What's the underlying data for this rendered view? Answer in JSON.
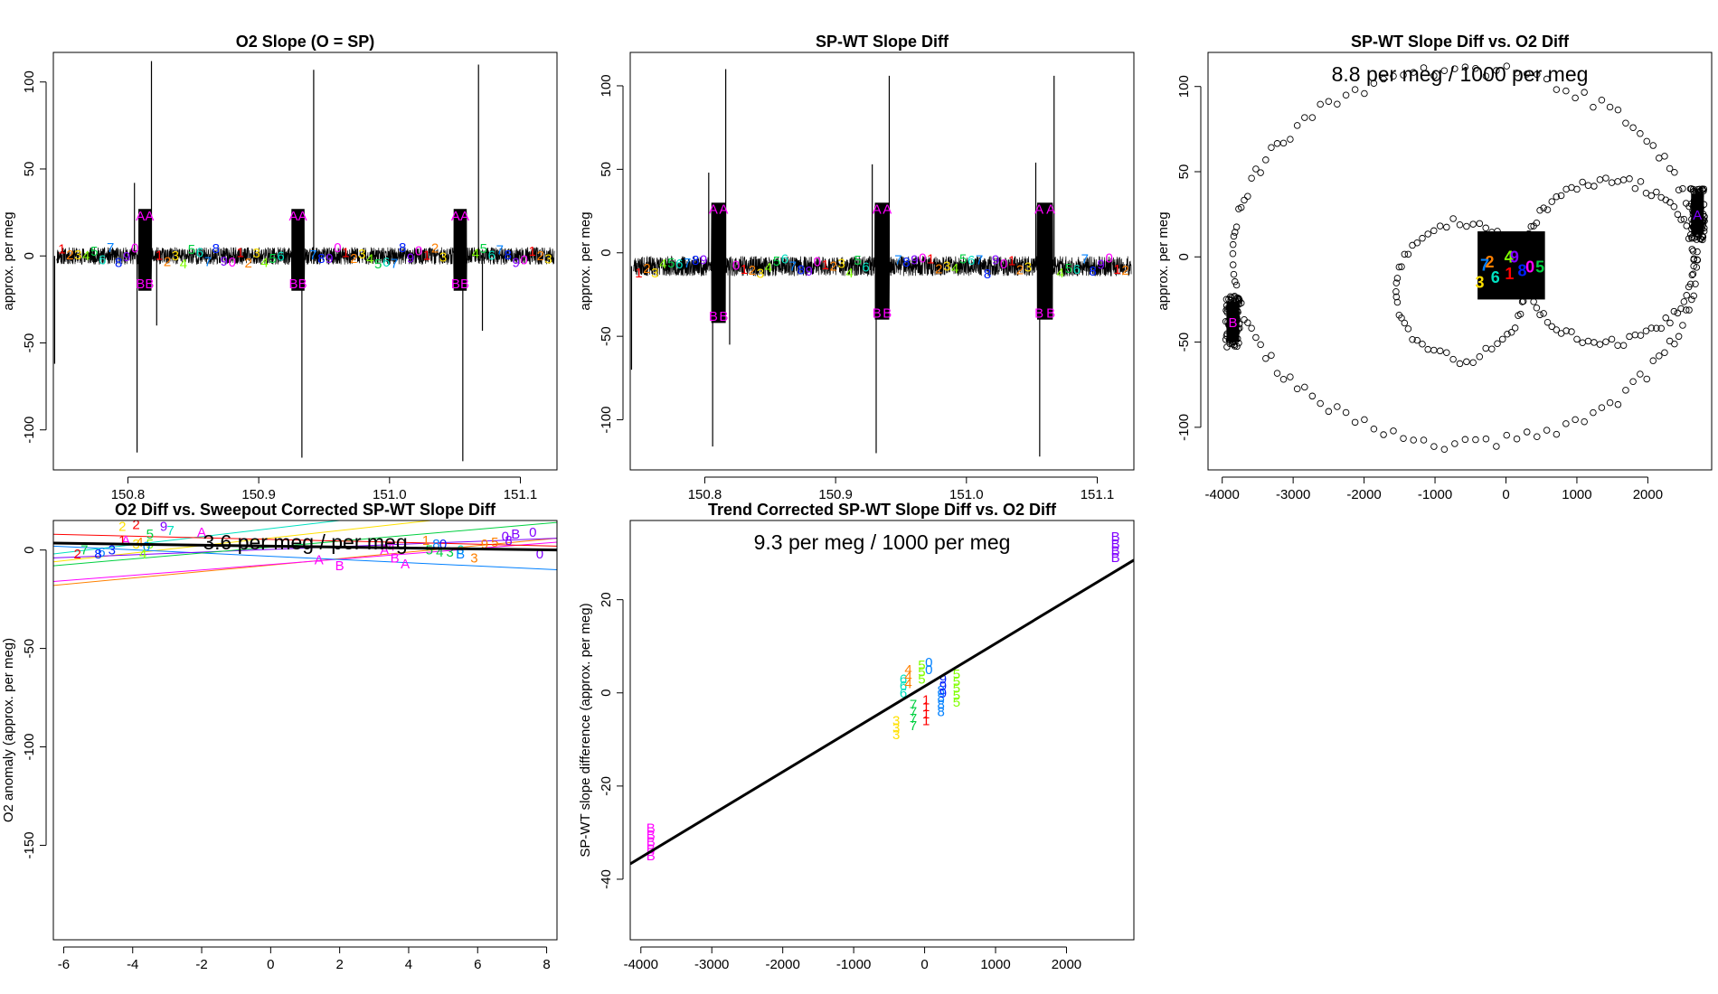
{
  "figure": {
    "layout": "2x3 grid of R base-graphics panels; bottom-right cell empty",
    "colors": {
      "rainbow": [
        "#ff0000",
        "#ff8000",
        "#ffe000",
        "#80ff00",
        "#00d040",
        "#00e0c0",
        "#0080ff",
        "#0020ff",
        "#8000ff",
        "#ff00ff"
      ],
      "line": "#000000"
    }
  },
  "chart_data": [
    {
      "id": "p1",
      "type": "line",
      "title": "O2 Slope (O = SP)",
      "xlabel": "",
      "ylabel": "approx. per meg",
      "xlim": [
        150.743,
        151.128
      ],
      "ylim": [
        -123,
        117
      ],
      "xticks": [
        150.8,
        150.9,
        151.0,
        151.1
      ],
      "xtick_labels": [
        "150.8",
        "150.9",
        "151.0",
        "151.1"
      ],
      "yticks": [
        -100,
        -50,
        0,
        50,
        100
      ],
      "ytick_labels": [
        "-100",
        "-50",
        "0",
        "50",
        "100"
      ],
      "baseline": 0,
      "noise": 5,
      "cycle_labels": [
        "1",
        "2",
        "3",
        "4",
        "5",
        "6",
        "7",
        "8",
        "9",
        "0"
      ],
      "blocks": [
        {
          "x0": 150.808,
          "x1": 150.818,
          "level": 0,
          "label_hi": "A",
          "label_lo": "B",
          "hi": 23,
          "lo": -16
        },
        {
          "x0": 150.925,
          "x1": 150.935,
          "level": 0,
          "label_hi": "A",
          "label_lo": "B",
          "hi": 23,
          "lo": -16
        },
        {
          "x0": 151.049,
          "x1": 151.059,
          "level": 0,
          "label_hi": "A",
          "label_lo": "B",
          "hi": 23,
          "lo": -16
        }
      ],
      "spikes": [
        {
          "x": 150.744,
          "y": -62
        },
        {
          "x": 150.805,
          "y": 42
        },
        {
          "x": 150.807,
          "y": -113
        },
        {
          "x": 150.818,
          "y": 112
        },
        {
          "x": 150.822,
          "y": -40
        },
        {
          "x": 150.933,
          "y": -116
        },
        {
          "x": 150.942,
          "y": 107
        },
        {
          "x": 151.056,
          "y": -118
        },
        {
          "x": 151.068,
          "y": 110
        },
        {
          "x": 151.071,
          "y": -43
        }
      ]
    },
    {
      "id": "p2",
      "type": "line",
      "title": "SP-WT Slope Diff",
      "xlabel": "",
      "ylabel": "approx. per meg",
      "xlim": [
        150.743,
        151.128
      ],
      "ylim": [
        -130,
        120
      ],
      "xticks": [
        150.8,
        150.9,
        151.0,
        151.1
      ],
      "xtick_labels": [
        "150.8",
        "150.9",
        "151.0",
        "151.1"
      ],
      "yticks": [
        -100,
        -50,
        0,
        50,
        100
      ],
      "ytick_labels": [
        "-100",
        "-50",
        "0",
        "50",
        "100"
      ],
      "baseline": -8,
      "noise": 6,
      "cycle_labels": [
        "1",
        "2",
        "3",
        "4",
        "5",
        "6",
        "7",
        "8",
        "9",
        "0"
      ],
      "blocks": [
        {
          "x0": 150.805,
          "x1": 150.816,
          "level": 0,
          "label_hi": "A",
          "label_lo": "B",
          "hi": 26,
          "lo": -38
        },
        {
          "x0": 150.93,
          "x1": 150.941,
          "level": 0,
          "label_hi": "A",
          "label_lo": "B",
          "hi": 26,
          "lo": -36
        },
        {
          "x0": 151.054,
          "x1": 151.066,
          "level": 0,
          "label_hi": "A",
          "label_lo": "B",
          "hi": 26,
          "lo": -36
        }
      ],
      "spikes": [
        {
          "x": 150.744,
          "y": -70
        },
        {
          "x": 150.803,
          "y": 48
        },
        {
          "x": 150.806,
          "y": -116
        },
        {
          "x": 150.816,
          "y": 110
        },
        {
          "x": 150.819,
          "y": -55
        },
        {
          "x": 150.928,
          "y": 53
        },
        {
          "x": 150.931,
          "y": -120
        },
        {
          "x": 150.941,
          "y": 106
        },
        {
          "x": 151.053,
          "y": 54
        },
        {
          "x": 151.056,
          "y": -122
        },
        {
          "x": 151.067,
          "y": 106
        }
      ]
    },
    {
      "id": "p3",
      "type": "scatter",
      "title": "SP-WT Slope Diff vs. O2 Diff",
      "xlabel": "",
      "ylabel": "approx. per meg",
      "annotation": "8.8 per meg / 1000 per meg",
      "xlim": [
        -4200,
        2900
      ],
      "ylim": [
        -125,
        120
      ],
      "xticks": [
        -4000,
        -3000,
        -2000,
        -1000,
        0,
        1000,
        2000
      ],
      "xtick_labels": [
        "-4000",
        "-3000",
        "-2000",
        "-1000",
        "0",
        "1000",
        "2000"
      ],
      "yticks": [
        -100,
        -50,
        0,
        50,
        100
      ],
      "ytick_labels": [
        "-100",
        "-50",
        "0",
        "50",
        "100"
      ],
      "cluster_left": {
        "x": -3850,
        "y": -38,
        "label": "B"
      },
      "cluster_right": {
        "x": 2700,
        "y": 25,
        "label": "A"
      },
      "center_block": {
        "x0": -400,
        "x1": 550,
        "y0": -25,
        "y1": 15
      },
      "center_labels": [
        {
          "t": "3",
          "x": -370,
          "y": -15
        },
        {
          "t": "7",
          "x": -300,
          "y": -5
        },
        {
          "t": "2",
          "x": -230,
          "y": -3
        },
        {
          "t": "6",
          "x": -150,
          "y": -12
        },
        {
          "t": "4",
          "x": 40,
          "y": 0
        },
        {
          "t": "9",
          "x": 120,
          "y": 0
        },
        {
          "t": "1",
          "x": 50,
          "y": -10
        },
        {
          "t": "8",
          "x": 230,
          "y": -8
        },
        {
          "t": "0",
          "x": 340,
          "y": -6
        },
        {
          "t": "5",
          "x": 480,
          "y": -6
        }
      ]
    },
    {
      "id": "p4",
      "type": "scatter",
      "title": "O2 Diff vs. Sweepout Corrected SP-WT Slope Diff",
      "xlabel": "",
      "ylabel": "O2 anomaly (approx. per meg)",
      "annotation": "3.6 per meg / per meg",
      "xlim": [
        -6.3,
        8.3
      ],
      "ylim": [
        -198,
        15
      ],
      "xticks": [
        -6,
        -4,
        -2,
        0,
        2,
        4,
        6,
        8
      ],
      "xtick_labels": [
        "-6",
        "-4",
        "-2",
        "0",
        "2",
        "4",
        "6",
        "8"
      ],
      "yticks": [
        -150,
        -100,
        -50,
        0
      ],
      "ytick_labels": [
        "-150",
        "-100",
        "-50",
        "0"
      ],
      "fit": {
        "x0": -6.3,
        "y0": 3.5,
        "x1": 8.3,
        "y1": 0
      },
      "points": [
        {
          "t": "2",
          "x": -3.9,
          "y": 13,
          "c": "#ff0000"
        },
        {
          "t": "2",
          "x": -4.3,
          "y": 12,
          "c": "#ffe000"
        },
        {
          "t": "A",
          "x": -4.2,
          "y": 5,
          "c": "#ff00ff"
        },
        {
          "t": "1",
          "x": -4.3,
          "y": 5,
          "c": "#ff0000"
        },
        {
          "t": "9",
          "x": -3.1,
          "y": 12,
          "c": "#8000ff"
        },
        {
          "t": "A",
          "x": -2.0,
          "y": 9,
          "c": "#ff00ff"
        },
        {
          "t": "7",
          "x": -2.9,
          "y": 10,
          "c": "#00e0c0"
        },
        {
          "t": "5",
          "x": -3.5,
          "y": 8,
          "c": "#00d040"
        },
        {
          "t": "2",
          "x": -5.6,
          "y": -2,
          "c": "#ff0000"
        },
        {
          "t": "7",
          "x": -5.4,
          "y": 0,
          "c": "#00d040"
        },
        {
          "t": "6",
          "x": -4.9,
          "y": -1,
          "c": "#0080ff"
        },
        {
          "t": "8",
          "x": -5.0,
          "y": -2,
          "c": "#0020ff"
        },
        {
          "t": "4",
          "x": -3.8,
          "y": 4,
          "c": "#ff8000"
        },
        {
          "t": "5",
          "x": -3.5,
          "y": 3,
          "c": "#80ff00"
        },
        {
          "t": "3",
          "x": -3.9,
          "y": 3,
          "c": "#ffe000"
        },
        {
          "t": "0",
          "x": -3.6,
          "y": 2,
          "c": "#0080ff"
        },
        {
          "t": "4",
          "x": -3.7,
          "y": -2,
          "c": "#80ff00"
        },
        {
          "t": "3",
          "x": -4.6,
          "y": 0,
          "c": "#0020ff"
        },
        {
          "t": "A",
          "x": 1.4,
          "y": -5,
          "c": "#ff00ff"
        },
        {
          "t": "B",
          "x": 2.0,
          "y": -8,
          "c": "#ff00ff"
        },
        {
          "t": "A",
          "x": 3.3,
          "y": 0,
          "c": "#ff00ff"
        },
        {
          "t": "B",
          "x": 3.6,
          "y": -4,
          "c": "#ff00ff"
        },
        {
          "t": "A",
          "x": 3.9,
          "y": -7,
          "c": "#ff00ff"
        },
        {
          "t": "4",
          "x": 3.5,
          "y": 2,
          "c": "#ff00ff"
        },
        {
          "t": "1",
          "x": 4.5,
          "y": 5,
          "c": "#ff8000"
        },
        {
          "t": "8",
          "x": 4.8,
          "y": 3,
          "c": "#0080ff"
        },
        {
          "t": "0",
          "x": 5.0,
          "y": 3,
          "c": "#0020ff"
        },
        {
          "t": "5",
          "x": 4.6,
          "y": 0,
          "c": "#00d040"
        },
        {
          "t": "3",
          "x": 5.2,
          "y": -1,
          "c": "#00d040"
        },
        {
          "t": "6",
          "x": 5.5,
          "y": 0,
          "c": "#00e0c0"
        },
        {
          "t": "B",
          "x": 5.5,
          "y": -2,
          "c": "#0080ff"
        },
        {
          "t": "3",
          "x": 5.9,
          "y": -4,
          "c": "#ff8000"
        },
        {
          "t": "9",
          "x": 6.2,
          "y": 3,
          "c": "#ff8000"
        },
        {
          "t": "0",
          "x": 6.8,
          "y": 7,
          "c": "#8000ff"
        },
        {
          "t": "B",
          "x": 7.1,
          "y": 8,
          "c": "#8000ff"
        },
        {
          "t": "0",
          "x": 7.6,
          "y": 9,
          "c": "#8000ff"
        },
        {
          "t": "0",
          "x": 7.8,
          "y": -2,
          "c": "#8000ff"
        },
        {
          "t": "5",
          "x": 6.5,
          "y": 4,
          "c": "#ff8000"
        },
        {
          "t": "8",
          "x": 6.9,
          "y": 5,
          "c": "#8000ff"
        },
        {
          "t": "4",
          "x": 4.9,
          "y": -1,
          "c": "#00d040"
        }
      ],
      "thin_lines": [
        {
          "x0": -6.3,
          "y0": -6,
          "x1": 8.3,
          "y1": 22,
          "c": "#ffe000"
        },
        {
          "x0": -6.3,
          "y0": -18,
          "x1": 8.3,
          "y1": 6,
          "c": "#ff8000"
        },
        {
          "x0": -6.3,
          "y0": -16,
          "x1": 8.3,
          "y1": 4,
          "c": "#ff00ff"
        },
        {
          "x0": -6.3,
          "y0": 2,
          "x1": 8.3,
          "y1": -10,
          "c": "#0080ff"
        },
        {
          "x0": -6.3,
          "y0": -4,
          "x1": 8.3,
          "y1": 6,
          "c": "#8000ff"
        },
        {
          "x0": -6.3,
          "y0": -8,
          "x1": 8.3,
          "y1": 14,
          "c": "#00d040"
        },
        {
          "x0": -6.3,
          "y0": -2,
          "x1": 2.0,
          "y1": 15,
          "c": "#00e0c0"
        },
        {
          "x0": -6.3,
          "y0": 8,
          "x1": 8.3,
          "y1": 2,
          "c": "#ff0000"
        }
      ]
    },
    {
      "id": "p5",
      "type": "scatter",
      "title": "Trend Corrected SP-WT Slope Diff vs. O2 Diff",
      "xlabel": "",
      "ylabel": "SP-WT slope difference (approx. per meg)",
      "annotation": "9.3 per meg / 1000 per meg",
      "xlim": [
        -4150,
        2950
      ],
      "ylim": [
        -53,
        37
      ],
      "xticks": [
        -4000,
        -3000,
        -2000,
        -1000,
        0,
        1000,
        2000
      ],
      "xtick_labels": [
        "-4000",
        "-3000",
        "-2000",
        "-1000",
        "0",
        "1000",
        "2000"
      ],
      "yticks": [
        -40,
        -20,
        0,
        20
      ],
      "ytick_labels": [
        "-40",
        "-20",
        "0",
        "20"
      ],
      "fit": {
        "x0": -4150,
        "y0": -36.7,
        "x1": 2950,
        "y1": 28.5
      },
      "columns": [
        {
          "t": "B",
          "x": -3860,
          "y0": -35,
          "y1": -28,
          "c": "#ff00ff"
        },
        {
          "t": "B",
          "x": 2690,
          "y0": 29,
          "y1": 34,
          "c": "#8000ff"
        },
        {
          "t": "3",
          "x": -400,
          "y0": -9,
          "y1": -5,
          "c": "#ffe000"
        },
        {
          "t": "6",
          "x": -300,
          "y0": 0,
          "y1": 4,
          "c": "#00e0c0"
        },
        {
          "t": "4",
          "x": -230,
          "y0": 2,
          "y1": 5,
          "c": "#ff8000"
        },
        {
          "t": "7",
          "x": -160,
          "y0": -7,
          "y1": -2,
          "c": "#00d040"
        },
        {
          "t": "5",
          "x": -40,
          "y0": 3,
          "y1": 7,
          "c": "#80ff00"
        },
        {
          "t": "1",
          "x": 20,
          "y0": -6,
          "y1": -1,
          "c": "#ff0000"
        },
        {
          "t": "0",
          "x": 60,
          "y0": 5,
          "y1": 7,
          "c": "#0080ff"
        },
        {
          "t": "8",
          "x": 230,
          "y0": -4,
          "y1": 1,
          "c": "#0080ff"
        },
        {
          "t": "9",
          "x": 260,
          "y0": 0,
          "y1": 3,
          "c": "#0020ff"
        },
        {
          "t": "5",
          "x": 450,
          "y0": -2,
          "y1": 4,
          "c": "#80ff00"
        }
      ]
    }
  ]
}
